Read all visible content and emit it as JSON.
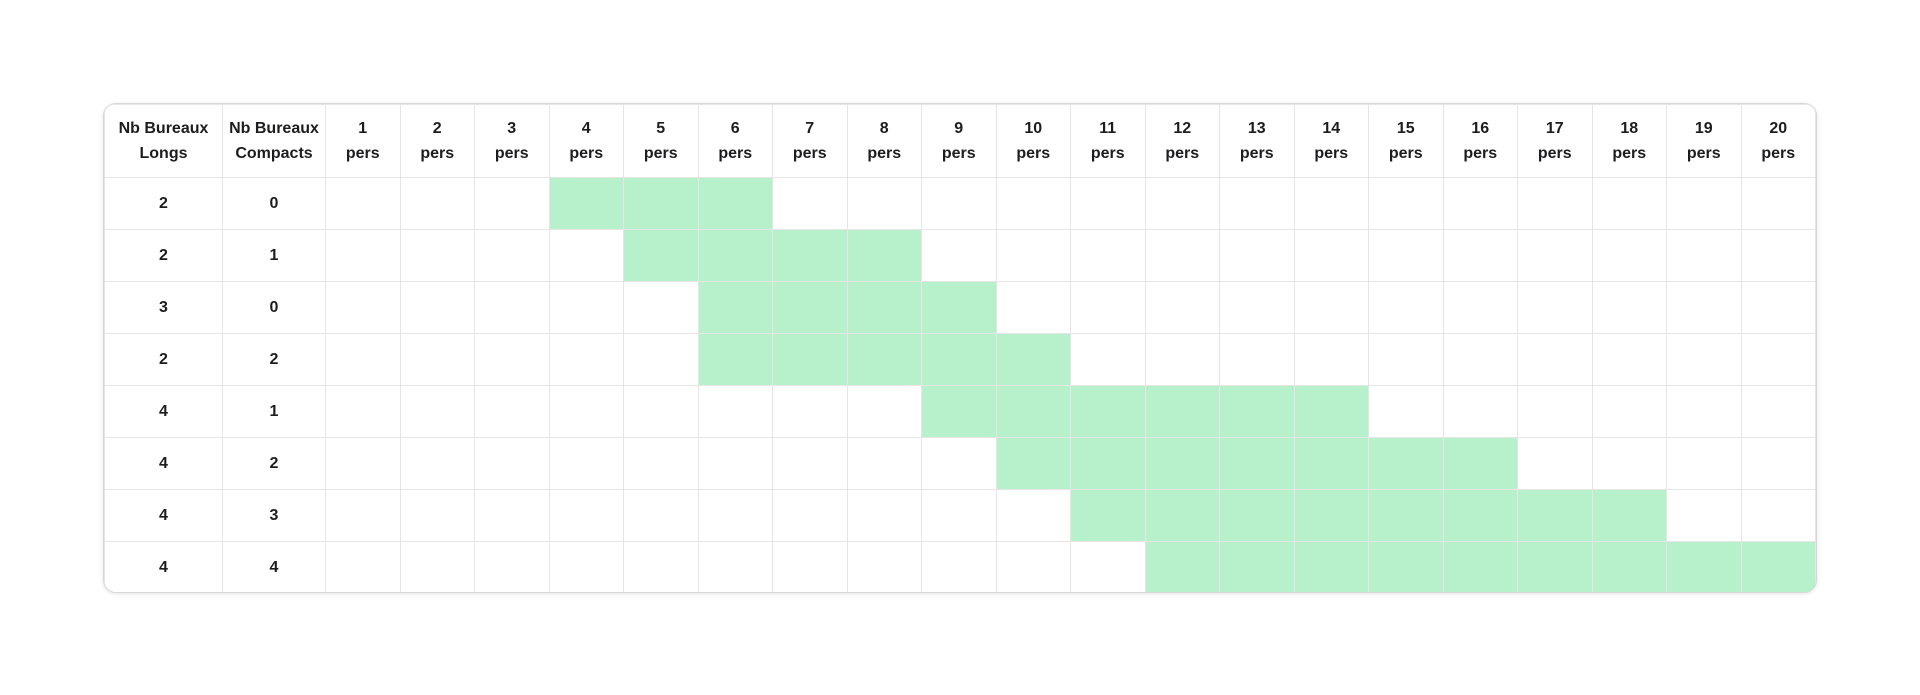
{
  "colors": {
    "highlight": "#b6f1cb",
    "gridline": "#e6e6e6",
    "card_border": "#d7d7d7",
    "text": "#1d1d1f",
    "background": "#ffffff"
  },
  "table": {
    "row_header_columns": [
      {
        "line1": "Nb Bureaux",
        "line2": "Longs"
      },
      {
        "line1": "Nb Bureaux",
        "line2": "Compacts"
      }
    ],
    "person_columns": [
      {
        "num": "1",
        "unit": "pers"
      },
      {
        "num": "2",
        "unit": "pers"
      },
      {
        "num": "3",
        "unit": "pers"
      },
      {
        "num": "4",
        "unit": "pers"
      },
      {
        "num": "5",
        "unit": "pers"
      },
      {
        "num": "6",
        "unit": "pers"
      },
      {
        "num": "7",
        "unit": "pers"
      },
      {
        "num": "8",
        "unit": "pers"
      },
      {
        "num": "9",
        "unit": "pers"
      },
      {
        "num": "10",
        "unit": "pers"
      },
      {
        "num": "11",
        "unit": "pers"
      },
      {
        "num": "12",
        "unit": "pers"
      },
      {
        "num": "13",
        "unit": "pers"
      },
      {
        "num": "14",
        "unit": "pers"
      },
      {
        "num": "15",
        "unit": "pers"
      },
      {
        "num": "16",
        "unit": "pers"
      },
      {
        "num": "17",
        "unit": "pers"
      },
      {
        "num": "18",
        "unit": "pers"
      },
      {
        "num": "19",
        "unit": "pers"
      },
      {
        "num": "20",
        "unit": "pers"
      }
    ],
    "rows": [
      {
        "longs": "2",
        "compacts": "0",
        "highlight_min": 4,
        "highlight_max": 6
      },
      {
        "longs": "2",
        "compacts": "1",
        "highlight_min": 5,
        "highlight_max": 8
      },
      {
        "longs": "3",
        "compacts": "0",
        "highlight_min": 6,
        "highlight_max": 9
      },
      {
        "longs": "2",
        "compacts": "2",
        "highlight_min": 6,
        "highlight_max": 10
      },
      {
        "longs": "4",
        "compacts": "1",
        "highlight_min": 9,
        "highlight_max": 14
      },
      {
        "longs": "4",
        "compacts": "2",
        "highlight_min": 10,
        "highlight_max": 16
      },
      {
        "longs": "4",
        "compacts": "3",
        "highlight_min": 11,
        "highlight_max": 18
      },
      {
        "longs": "4",
        "compacts": "4",
        "highlight_min": 12,
        "highlight_max": 20
      }
    ]
  },
  "chart_data": {
    "type": "table",
    "title": "",
    "columns": [
      "Nb Bureaux Longs",
      "Nb Bureaux Compacts",
      "1 pers",
      "2 pers",
      "3 pers",
      "4 pers",
      "5 pers",
      "6 pers",
      "7 pers",
      "8 pers",
      "9 pers",
      "10 pers",
      "11 pers",
      "12 pers",
      "13 pers",
      "14 pers",
      "15 pers",
      "16 pers",
      "17 pers",
      "18 pers",
      "19 pers",
      "20 pers"
    ],
    "rows": [
      {
        "nb_bureaux_longs": 2,
        "nb_bureaux_compacts": 0,
        "highlighted_pers_range": [
          4,
          6
        ]
      },
      {
        "nb_bureaux_longs": 2,
        "nb_bureaux_compacts": 1,
        "highlighted_pers_range": [
          5,
          8
        ]
      },
      {
        "nb_bureaux_longs": 3,
        "nb_bureaux_compacts": 0,
        "highlighted_pers_range": [
          6,
          9
        ]
      },
      {
        "nb_bureaux_longs": 2,
        "nb_bureaux_compacts": 2,
        "highlighted_pers_range": [
          6,
          10
        ]
      },
      {
        "nb_bureaux_longs": 4,
        "nb_bureaux_compacts": 1,
        "highlighted_pers_range": [
          9,
          14
        ]
      },
      {
        "nb_bureaux_longs": 4,
        "nb_bureaux_compacts": 2,
        "highlighted_pers_range": [
          10,
          16
        ]
      },
      {
        "nb_bureaux_longs": 4,
        "nb_bureaux_compacts": 3,
        "highlighted_pers_range": [
          11,
          18
        ]
      },
      {
        "nb_bureaux_longs": 4,
        "nb_bureaux_compacts": 4,
        "highlighted_pers_range": [
          12,
          20
        ]
      }
    ],
    "highlight_color": "#b6f1cb",
    "grid": true,
    "legend_position": "none"
  }
}
